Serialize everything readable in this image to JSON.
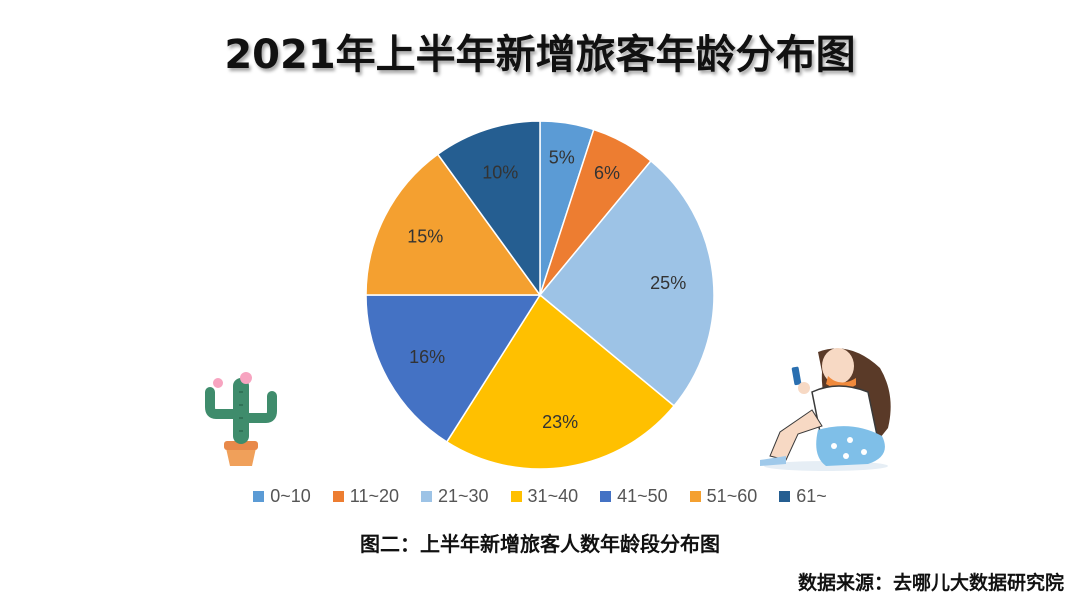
{
  "title": "2021年上半年新增旅客年龄分布图",
  "caption": "图二：上半年新增旅客人数年龄段分布图",
  "source": "数据来源：去哪儿大数据研究院",
  "chart_data": {
    "type": "pie",
    "title": "2021年上半年新增旅客年龄分布图",
    "start": "12 o'clock",
    "direction": "clockwise",
    "legend_position": "bottom",
    "slices": [
      {
        "label": "0~10",
        "value": 5,
        "display": "5%",
        "color": "#5b9bd5"
      },
      {
        "label": "11~20",
        "value": 6,
        "display": "6%",
        "color": "#ed7d31"
      },
      {
        "label": "21~30",
        "value": 25,
        "display": "25%",
        "color": "#9dc3e6"
      },
      {
        "label": "31~40",
        "value": 23,
        "display": "23%",
        "color": "#ffc000"
      },
      {
        "label": "41~50",
        "value": 16,
        "display": "16%",
        "color": "#4472c4"
      },
      {
        "label": "51~60",
        "value": 15,
        "display": "15%",
        "color": "#f4a030"
      },
      {
        "label": "61~",
        "value": 10,
        "display": "10%",
        "color": "#255e91"
      }
    ]
  },
  "decorations": {
    "left_illustration": "cactus-icon",
    "right_illustration": "woman-with-phone-illustration"
  }
}
